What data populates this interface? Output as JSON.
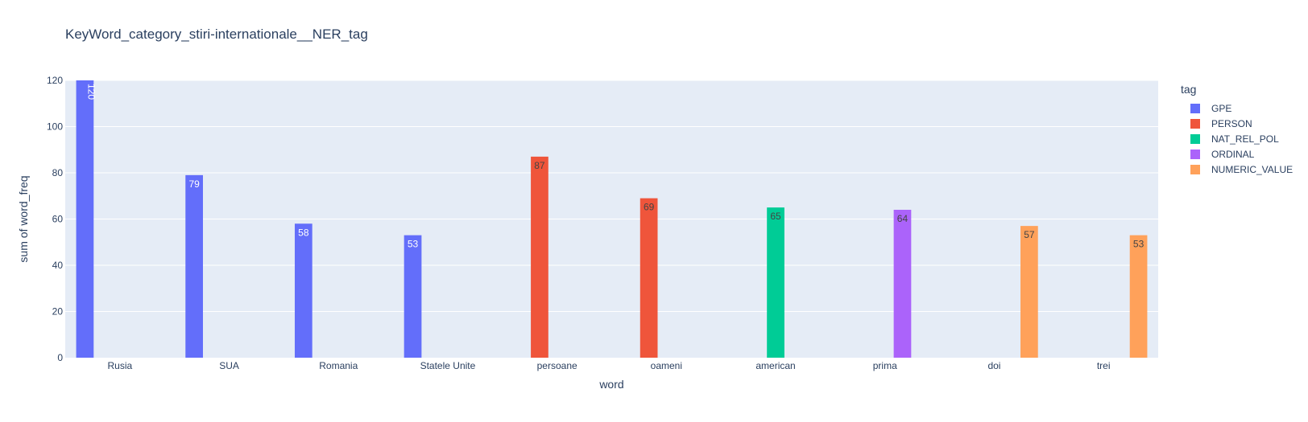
{
  "chart_data": {
    "type": "bar",
    "title": "KeyWord_category_stiri-internationale__NER_tag",
    "xlabel": "word",
    "ylabel": "sum of word_freq",
    "ylim": [
      0,
      120
    ],
    "yticks": [
      0,
      20,
      40,
      60,
      80,
      100,
      120
    ],
    "grid": true,
    "barmode": "group",
    "legend_title": "tag",
    "legend_position": "right",
    "categories": [
      "Rusia",
      "SUA",
      "Romania",
      "Statele Unite",
      "persoane",
      "oameni",
      "american",
      "prima",
      "doi",
      "trei"
    ],
    "series": [
      {
        "name": "GPE",
        "color": "#636efa",
        "values": [
          120,
          79,
          58,
          53,
          null,
          null,
          null,
          null,
          null,
          null
        ]
      },
      {
        "name": "PERSON",
        "color": "#ef553b",
        "values": [
          null,
          null,
          null,
          null,
          87,
          69,
          null,
          null,
          null,
          null
        ]
      },
      {
        "name": "NAT_REL_POL",
        "color": "#00cc96",
        "values": [
          null,
          null,
          null,
          null,
          null,
          null,
          65,
          null,
          null,
          null
        ]
      },
      {
        "name": "ORDINAL",
        "color": "#ab63fa",
        "values": [
          null,
          null,
          null,
          null,
          null,
          null,
          null,
          64,
          null,
          null
        ]
      },
      {
        "name": "NUMERIC_VALUE",
        "color": "#ffa15a",
        "values": [
          null,
          null,
          null,
          null,
          null,
          null,
          null,
          null,
          57,
          53
        ]
      }
    ],
    "colors": {
      "plot_bg": "#e5ecf6",
      "paper_bg": "#ffffff",
      "text": "#2a3f5f",
      "grid": "#ffffff"
    }
  }
}
